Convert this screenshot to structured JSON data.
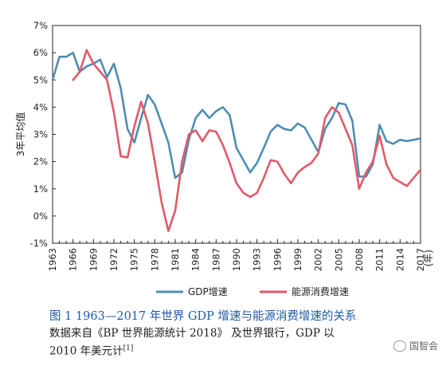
{
  "chart_data": {
    "type": "line",
    "title": "",
    "xlabel": "(年)",
    "ylabel": "3年平均值",
    "ylim": [
      -1,
      7
    ],
    "xlim": [
      1963,
      2017
    ],
    "y_ticks": [
      "-1%",
      "0%",
      "1%",
      "2%",
      "3%",
      "4%",
      "5%",
      "6%",
      "7%"
    ],
    "x_ticks": [
      "1963",
      "1966",
      "1969",
      "1972",
      "1975",
      "1978",
      "1981",
      "1984",
      "1987",
      "1990",
      "1993",
      "1996",
      "1999",
      "2002",
      "2005",
      "2008",
      "2011",
      "2014",
      "2017"
    ],
    "grid": false,
    "legend_placement": "bottom",
    "series": [
      {
        "name": "GDP增速",
        "color": "#4f8db3",
        "x": [
          1963,
          1964,
          1965,
          1966,
          1967,
          1968,
          1969,
          1970,
          1971,
          1972,
          1973,
          1974,
          1975,
          1976,
          1977,
          1978,
          1979,
          1980,
          1981,
          1982,
          1983,
          1984,
          1985,
          1986,
          1987,
          1988,
          1989,
          1990,
          1991,
          1992,
          1993,
          1994,
          1995,
          1996,
          1997,
          1998,
          1999,
          2000,
          2001,
          2002,
          2003,
          2004,
          2005,
          2006,
          2007,
          2008,
          2009,
          2010,
          2011,
          2012,
          2013,
          2014,
          2015,
          2016,
          2017
        ],
        "values": [
          5.0,
          5.85,
          5.85,
          6.0,
          5.3,
          5.5,
          5.6,
          5.75,
          5.1,
          5.6,
          4.7,
          3.2,
          2.7,
          3.6,
          4.45,
          4.1,
          3.4,
          2.7,
          1.4,
          1.6,
          2.8,
          3.6,
          3.9,
          3.6,
          3.85,
          4.0,
          3.7,
          2.5,
          2.05,
          1.6,
          1.95,
          2.5,
          3.1,
          3.35,
          3.2,
          3.15,
          3.4,
          3.25,
          2.8,
          2.35,
          3.2,
          3.6,
          4.15,
          4.1,
          3.5,
          1.45,
          1.45,
          1.9,
          3.35,
          2.75,
          2.65,
          2.8,
          2.75,
          2.8,
          2.85
        ]
      },
      {
        "name": "能源消费增速",
        "color": "#e05a6a",
        "x": [
          1966,
          1967,
          1968,
          1969,
          1970,
          1971,
          1972,
          1973,
          1974,
          1975,
          1976,
          1977,
          1978,
          1979,
          1980,
          1981,
          1982,
          1983,
          1984,
          1985,
          1986,
          1987,
          1988,
          1989,
          1990,
          1991,
          1992,
          1993,
          1994,
          1995,
          1996,
          1997,
          1998,
          1999,
          2000,
          2001,
          2002,
          2003,
          2004,
          2005,
          2006,
          2007,
          2008,
          2009,
          2010,
          2011,
          2012,
          2013,
          2014,
          2015,
          2016,
          2017
        ],
        "values": [
          5.0,
          5.3,
          6.1,
          5.6,
          5.3,
          5.0,
          3.8,
          2.2,
          2.15,
          3.3,
          4.2,
          3.4,
          2.0,
          0.5,
          -0.55,
          0.2,
          2.0,
          3.0,
          3.15,
          2.75,
          3.15,
          3.1,
          2.6,
          1.95,
          1.2,
          0.85,
          0.7,
          0.85,
          1.4,
          2.05,
          2.0,
          1.55,
          1.2,
          1.6,
          1.8,
          1.95,
          2.3,
          3.6,
          4.0,
          3.8,
          3.2,
          2.6,
          1.0,
          1.6,
          2.0,
          2.95,
          1.9,
          1.4,
          1.25,
          1.1,
          1.4,
          1.7
        ]
      }
    ]
  },
  "caption": "图 1 1963—2017 年世界 GDP 增速与能源消费增速的关系",
  "source_line1": "数据来自《BP 世界能源统计 2018》 及世界银行，GDP 以",
  "source_line2": "2010 年美元计",
  "source_ref": "[1]",
  "watermark": "国智会"
}
